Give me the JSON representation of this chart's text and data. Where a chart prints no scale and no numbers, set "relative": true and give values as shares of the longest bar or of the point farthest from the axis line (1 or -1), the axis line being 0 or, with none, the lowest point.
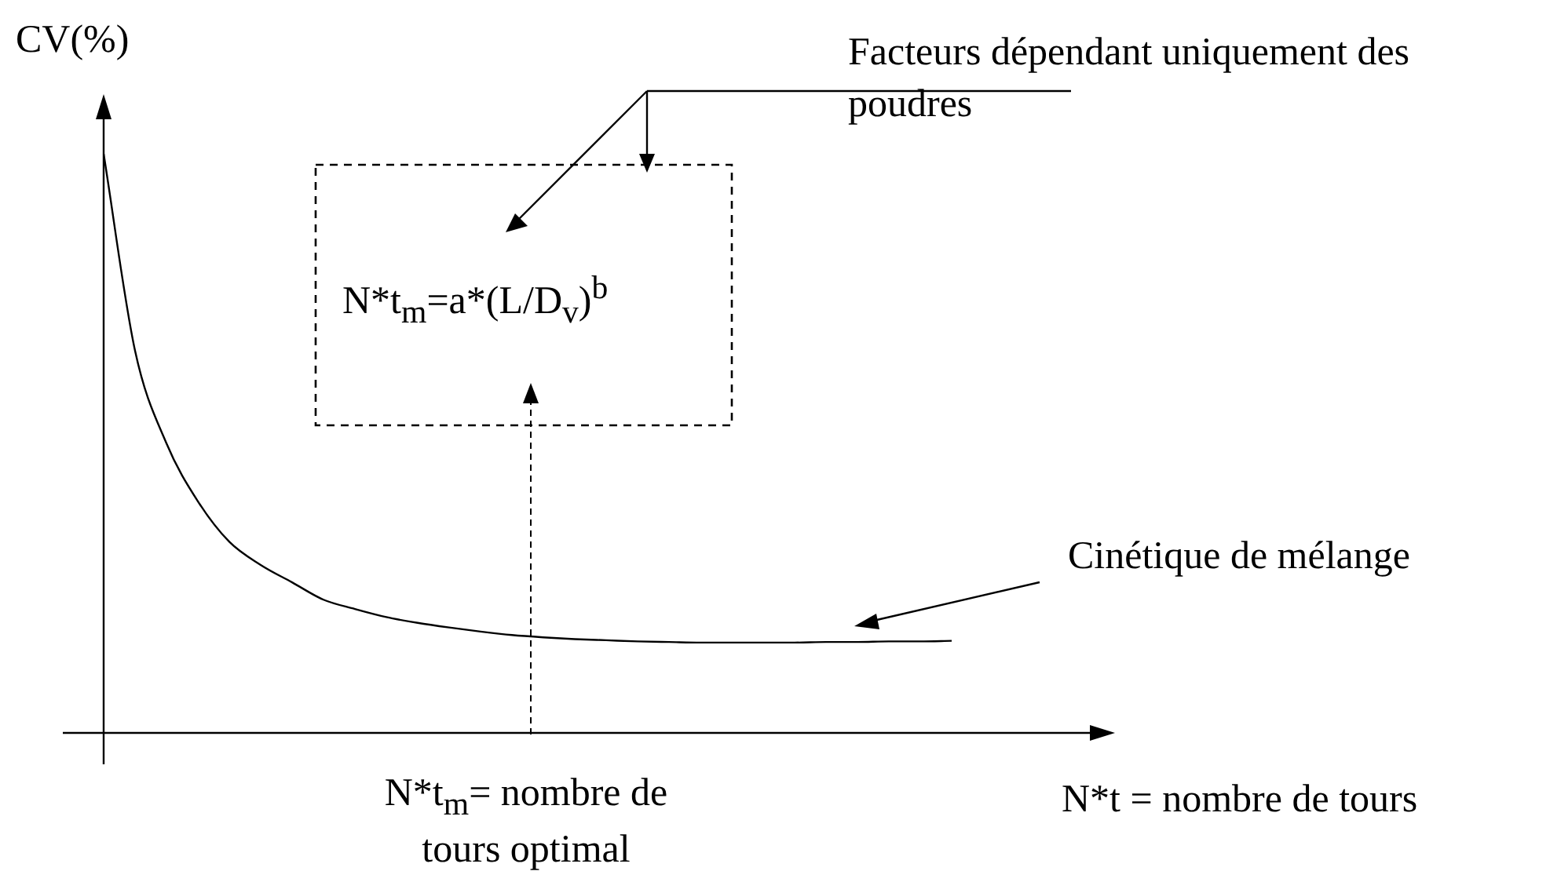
{
  "chart_data": {
    "type": "line",
    "relative": true,
    "ylabel": "CV(%)",
    "xlabel": "N*t = nombre de tours",
    "color": "#000000",
    "marker": "none",
    "legend": false,
    "categories": [
      null,
      null,
      null,
      null,
      null,
      null,
      null,
      null,
      null,
      null,
      null,
      null,
      null,
      null,
      null,
      null,
      null,
      null,
      null,
      null,
      null,
      null,
      null,
      null,
      null,
      null,
      null,
      null,
      null,
      null,
      null,
      null,
      null
    ],
    "values": [
      1.0,
      0.66,
      0.5,
      0.4,
      0.33,
      0.29,
      0.26,
      0.23,
      0.214,
      0.2,
      0.19,
      0.182,
      0.175,
      0.169,
      0.165,
      0.162,
      0.16,
      0.158,
      0.157,
      0.156,
      0.156,
      0.156,
      0.156,
      0.157,
      0.157,
      0.158,
      0.158,
      0.159,
      null,
      null,
      null,
      null,
      null
    ],
    "annotations": [
      "Facteurs dépendant uniquement des poudres",
      "N*t$_{m}$=a*(L/D$_{v}$)$^{b}$",
      "Cinétique de mélange",
      "N*t$_{m}$= nombre de tours optimal"
    ]
  }
}
